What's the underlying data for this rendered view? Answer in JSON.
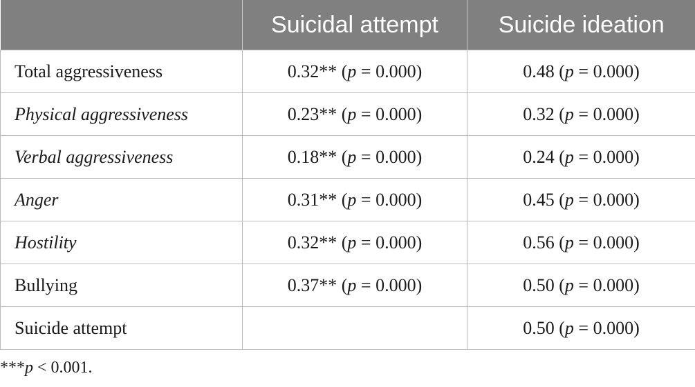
{
  "table": {
    "headers": [
      "",
      "Suicidal attempt",
      "Suicide ideation"
    ],
    "rows": [
      {
        "label": "Total aggressiveness",
        "label_italic": false,
        "attempt_r": "0.32**",
        "attempt_p": "0.000",
        "ideation_r": "0.48",
        "ideation_p": "0.000"
      },
      {
        "label": "Physical aggressiveness",
        "label_italic": true,
        "attempt_r": "0.23**",
        "attempt_p": "0.000",
        "ideation_r": "0.32",
        "ideation_p": "0.000"
      },
      {
        "label": "Verbal aggressiveness",
        "label_italic": true,
        "attempt_r": "0.18**",
        "attempt_p": "0.000",
        "ideation_r": "0.24",
        "ideation_p": "0.000"
      },
      {
        "label": "Anger",
        "label_italic": true,
        "attempt_r": "0.31**",
        "attempt_p": "0.000",
        "ideation_r": "0.45",
        "ideation_p": "0.000"
      },
      {
        "label": "Hostility",
        "label_italic": true,
        "attempt_r": "0.32**",
        "attempt_p": "0.000",
        "ideation_r": "0.56",
        "ideation_p": "0.000"
      },
      {
        "label": "Bullying",
        "label_italic": false,
        "attempt_r": "0.37**",
        "attempt_p": "0.000",
        "ideation_r": "0.50",
        "ideation_p": "0.000"
      },
      {
        "label": "Suicide attempt",
        "label_italic": false,
        "attempt_r": "",
        "attempt_p": "",
        "ideation_r": "0.50",
        "ideation_p": "0.000"
      }
    ]
  },
  "footnote": {
    "stars": "***",
    "p": "p",
    "rest": " < 0.001."
  },
  "colors": {
    "header_bg": "#808080",
    "header_text": "#ffffff",
    "grid": "#b9b9b9"
  }
}
